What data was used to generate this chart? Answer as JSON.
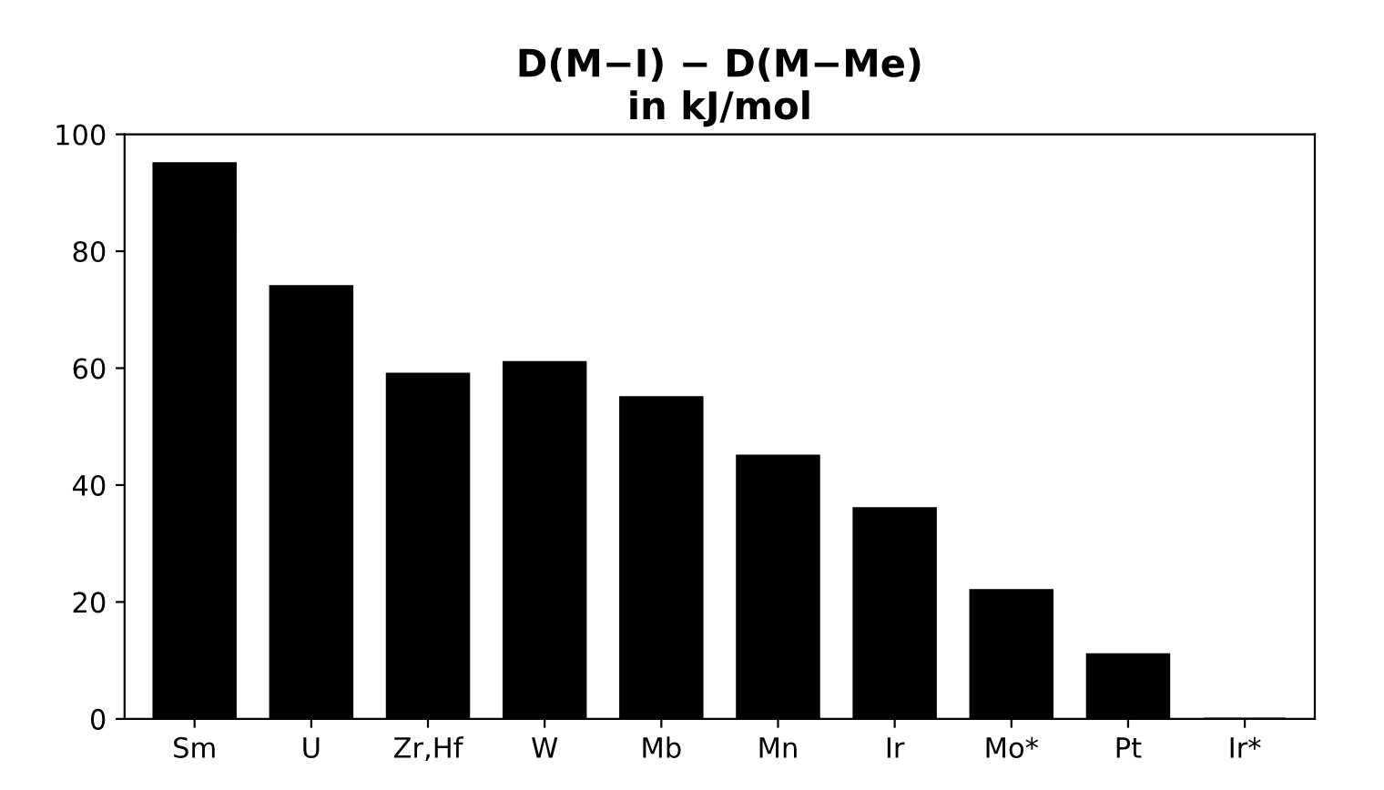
{
  "chart_data": {
    "type": "bar",
    "title": "D(M−I) − D(M−Me)\nin kJ/mol",
    "categories": [
      "Sm",
      "U",
      "Zr,Hf",
      "W",
      "Mb",
      "Mn",
      "Ir",
      "Mo*",
      "Pt",
      "Ir*"
    ],
    "values": [
      95,
      74,
      59,
      61,
      55,
      45,
      36,
      22,
      11,
      0
    ],
    "color": "#000000",
    "ylim": [
      0,
      100
    ],
    "yticks": [
      0,
      20,
      40,
      60,
      80,
      100
    ],
    "grid": false
  }
}
